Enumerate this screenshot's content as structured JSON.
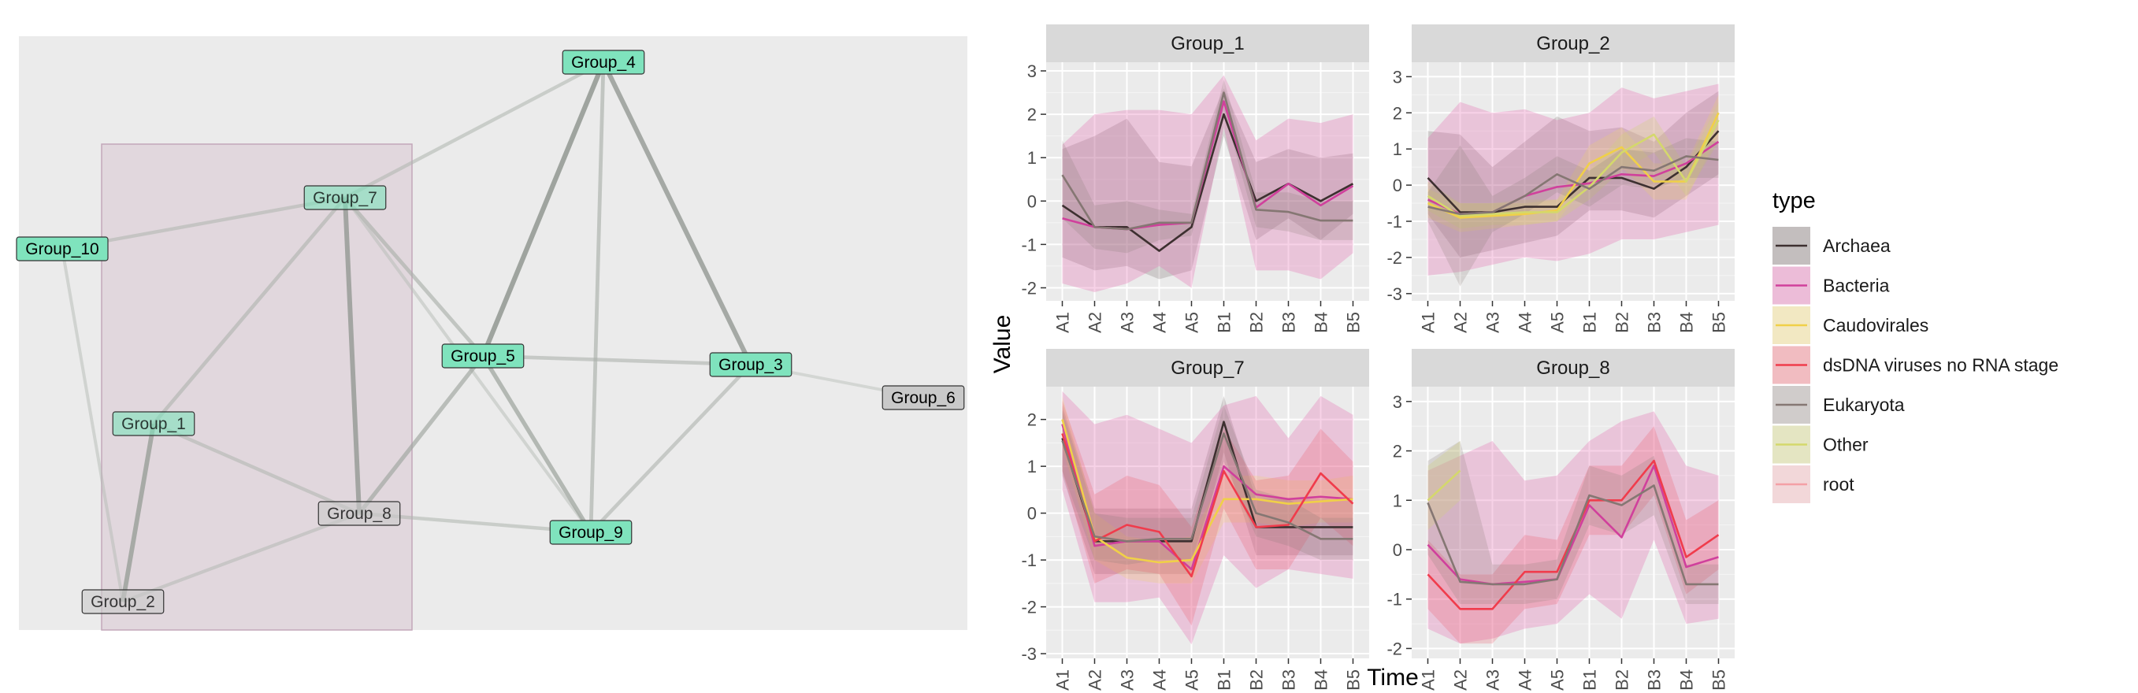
{
  "network": {
    "nodes": [
      {
        "id": "Group_4",
        "label": "Group_4",
        "color": "#7fe3bd",
        "in_box": false
      },
      {
        "id": "Group_7",
        "label": "Group_7",
        "color": "#7fe3bd",
        "in_box": true
      },
      {
        "id": "Group_10",
        "label": "Group_10",
        "color": "#7fe3bd",
        "in_box": false
      },
      {
        "id": "Group_5",
        "label": "Group_5",
        "color": "#7fe3bd",
        "in_box": false
      },
      {
        "id": "Group_3",
        "label": "Group_3",
        "color": "#7fe3bd",
        "in_box": false
      },
      {
        "id": "Group_6",
        "label": "Group_6",
        "color": "#c9c9c9",
        "in_box": false
      },
      {
        "id": "Group_1",
        "label": "Group_1",
        "color": "#7fe3bd",
        "in_box": true
      },
      {
        "id": "Group_8",
        "label": "Group_8",
        "color": "#c9c9c9",
        "in_box": true
      },
      {
        "id": "Group_9",
        "label": "Group_9",
        "color": "#7fe3bd",
        "in_box": false
      },
      {
        "id": "Group_2",
        "label": "Group_2",
        "color": "#c9c9c9",
        "in_box": true
      }
    ],
    "edges": [
      {
        "from": "Group_4",
        "to": "Group_7",
        "strength": 0.35
      },
      {
        "from": "Group_4",
        "to": "Group_5",
        "strength": 0.8
      },
      {
        "from": "Group_4",
        "to": "Group_3",
        "strength": 0.75
      },
      {
        "from": "Group_4",
        "to": "Group_9",
        "strength": 0.45
      },
      {
        "from": "Group_7",
        "to": "Group_10",
        "strength": 0.35
      },
      {
        "from": "Group_7",
        "to": "Group_1",
        "strength": 0.4
      },
      {
        "from": "Group_7",
        "to": "Group_8",
        "strength": 0.75
      },
      {
        "from": "Group_7",
        "to": "Group_5",
        "strength": 0.45
      },
      {
        "from": "Group_7",
        "to": "Group_9",
        "strength": 0.25
      },
      {
        "from": "Group_10",
        "to": "Group_2",
        "strength": 0.25
      },
      {
        "from": "Group_5",
        "to": "Group_3",
        "strength": 0.4
      },
      {
        "from": "Group_5",
        "to": "Group_9",
        "strength": 0.6
      },
      {
        "from": "Group_5",
        "to": "Group_8",
        "strength": 0.55
      },
      {
        "from": "Group_3",
        "to": "Group_6",
        "strength": 0.2
      },
      {
        "from": "Group_3",
        "to": "Group_9",
        "strength": 0.4
      },
      {
        "from": "Group_1",
        "to": "Group_2",
        "strength": 0.7
      },
      {
        "from": "Group_1",
        "to": "Group_8",
        "strength": 0.35
      },
      {
        "from": "Group_8",
        "to": "Group_9",
        "strength": 0.35
      },
      {
        "from": "Group_8",
        "to": "Group_2",
        "strength": 0.3
      }
    ]
  },
  "chart_data": {
    "type": "line",
    "xlabel": "Time",
    "ylabel": "Value",
    "categories": [
      "A1",
      "A2",
      "A3",
      "A4",
      "A5",
      "B1",
      "B2",
      "B3",
      "B4",
      "B5"
    ],
    "legend": {
      "title": "type",
      "position": "right"
    },
    "series_colors": {
      "Archaea": "#3d3030",
      "Bacteria": "#d0409c",
      "Caudovirales": "#f0d048",
      "dsDNA viruses  no RNA stage": "#f03c4c",
      "Eukaryota": "#857773",
      "Other": "#d4d86c",
      "root": "#f4a0a6"
    },
    "legend_items": [
      "Archaea",
      "Bacteria",
      "Caudovirales",
      "dsDNA viruses  no RNA stage",
      "Eukaryota",
      "Other",
      "root"
    ],
    "panels": [
      {
        "title": "Group_1",
        "ylim": [
          -2.3,
          3.2
        ],
        "yticks": [
          -2,
          -1,
          0,
          1,
          2,
          3
        ],
        "series": [
          {
            "name": "Archaea",
            "values": [
              -0.1,
              -0.6,
              -0.6,
              -1.15,
              -0.6,
              2.0,
              0.0,
              0.4,
              0.0,
              0.4
            ],
            "lower": [
              -1.3,
              -1.6,
              -1.5,
              -1.8,
              -1.6,
              1.5,
              -0.9,
              -0.4,
              -0.9,
              -0.3
            ],
            "upper": [
              1.2,
              1.5,
              1.9,
              0.9,
              0.8,
              2.6,
              0.9,
              1.2,
              1.0,
              1.1
            ]
          },
          {
            "name": "Bacteria",
            "values": [
              -0.4,
              -0.6,
              -0.65,
              -0.55,
              -0.5,
              2.3,
              -0.15,
              0.4,
              -0.1,
              0.35
            ],
            "lower": [
              -1.9,
              -2.1,
              -1.9,
              -1.5,
              -2.0,
              1.7,
              -1.6,
              -1.6,
              -1.8,
              -1.2
            ],
            "upper": [
              1.3,
              2.0,
              2.1,
              2.1,
              2.0,
              2.9,
              1.4,
              1.9,
              1.8,
              2.0
            ]
          },
          {
            "name": "Eukaryota",
            "values": [
              0.6,
              -0.6,
              -0.65,
              -0.5,
              -0.5,
              2.5,
              -0.2,
              -0.25,
              -0.45,
              -0.45
            ],
            "lower": [
              -0.4,
              -1.1,
              -1.2,
              -0.9,
              -0.8,
              2.1,
              -0.6,
              -0.7,
              -0.9,
              -0.9
            ],
            "upper": [
              1.4,
              -0.1,
              0.0,
              -0.2,
              -0.3,
              2.8,
              0.2,
              0.2,
              0.0,
              0.0
            ]
          }
        ]
      },
      {
        "title": "Group_2",
        "ylim": [
          -3.2,
          3.4
        ],
        "yticks": [
          -3,
          -2,
          -1,
          0,
          1,
          2,
          3
        ],
        "series": [
          {
            "name": "Archaea",
            "values": [
              0.2,
              -0.75,
              -0.75,
              -0.6,
              -0.6,
              0.2,
              0.2,
              -0.1,
              0.5,
              1.5
            ],
            "lower": [
              -0.8,
              -2.0,
              -1.8,
              -1.6,
              -1.4,
              -0.7,
              -0.7,
              -0.9,
              -0.3,
              0.3
            ],
            "upper": [
              1.5,
              1.4,
              0.5,
              1.2,
              1.9,
              1.5,
              1.6,
              1.2,
              2.0,
              2.6
            ]
          },
          {
            "name": "Bacteria",
            "values": [
              -0.4,
              -0.8,
              -0.75,
              -0.3,
              -0.05,
              0.05,
              0.3,
              0.25,
              0.6,
              1.2
            ],
            "lower": [
              -2.5,
              -2.4,
              -2.2,
              -2.0,
              -2.1,
              -1.9,
              -1.5,
              -1.5,
              -1.3,
              -1.1
            ],
            "upper": [
              1.3,
              2.3,
              2.0,
              2.1,
              1.8,
              2.0,
              2.7,
              2.4,
              2.6,
              2.8
            ]
          },
          {
            "name": "Caudovirales",
            "values": [
              -0.5,
              -0.9,
              -0.85,
              -0.8,
              -0.7,
              0.6,
              1.05,
              0.1,
              0.1,
              2.0
            ],
            "lower": [
              -0.9,
              -1.3,
              -1.2,
              -1.1,
              -1.0,
              0.1,
              0.5,
              -0.4,
              -0.4,
              1.4
            ],
            "upper": [
              -0.1,
              -0.5,
              -0.5,
              -0.5,
              -0.4,
              1.1,
              1.6,
              0.6,
              0.6,
              2.5
            ]
          },
          {
            "name": "Other",
            "values": [
              -0.3,
              -0.85,
              -0.8,
              -0.75,
              -0.75,
              -0.05,
              0.9,
              1.4,
              0.1,
              1.8
            ],
            "lower": [
              -0.7,
              -1.2,
              -1.1,
              -1.1,
              -1.0,
              -0.4,
              0.4,
              0.9,
              -0.3,
              1.2
            ],
            "upper": [
              0.1,
              -0.5,
              -0.5,
              -0.4,
              -0.4,
              0.4,
              1.4,
              1.9,
              0.5,
              2.3
            ]
          },
          {
            "name": "Eukaryota",
            "values": [
              -0.6,
              -0.8,
              -0.75,
              -0.3,
              0.3,
              -0.1,
              0.5,
              0.4,
              0.8,
              0.7
            ],
            "lower": [
              -1.0,
              -2.8,
              -1.3,
              -0.8,
              -0.2,
              -0.6,
              0.0,
              -0.1,
              0.2,
              0.2
            ],
            "upper": [
              -0.2,
              1.1,
              -0.3,
              0.2,
              0.8,
              0.4,
              1.0,
              0.9,
              1.3,
              1.2
            ]
          }
        ]
      },
      {
        "title": "Group_7",
        "ylim": [
          -3.1,
          2.7
        ],
        "yticks": [
          -3,
          -2,
          -1,
          0,
          1,
          2
        ],
        "series": [
          {
            "name": "Archaea",
            "values": [
              1.6,
              -0.6,
              -0.6,
              -0.6,
              -0.6,
              1.95,
              -0.3,
              -0.3,
              -0.3,
              -0.3
            ],
            "lower": [
              0.8,
              -1.3,
              -1.3,
              -1.3,
              -1.3,
              1.3,
              -0.9,
              -0.9,
              -0.9,
              -0.9
            ],
            "upper": [
              2.3,
              0.1,
              0.1,
              0.1,
              0.1,
              2.5,
              0.3,
              0.3,
              0.3,
              0.3
            ]
          },
          {
            "name": "Bacteria",
            "values": [
              1.9,
              -0.7,
              -0.6,
              -0.6,
              -1.2,
              1.0,
              0.4,
              0.3,
              0.35,
              0.3
            ],
            "lower": [
              0.5,
              -1.9,
              -1.9,
              -1.8,
              -2.8,
              -0.9,
              -1.6,
              -1.2,
              -1.3,
              -1.4
            ],
            "upper": [
              2.6,
              1.9,
              2.1,
              1.8,
              1.5,
              2.3,
              2.5,
              1.6,
              2.5,
              2.1
            ]
          },
          {
            "name": "Caudovirales",
            "values": [
              2.0,
              -0.5,
              -0.95,
              -1.05,
              -1.0,
              0.3,
              0.3,
              0.2,
              0.25,
              0.3
            ],
            "lower": [
              1.4,
              -1.0,
              -1.4,
              -1.5,
              -1.5,
              -0.2,
              -0.2,
              -0.3,
              -0.2,
              -0.2
            ],
            "upper": [
              2.5,
              0.0,
              -0.5,
              -0.6,
              -0.5,
              0.8,
              0.8,
              0.7,
              0.7,
              0.8
            ]
          },
          {
            "name": "dsDNA viruses  no RNA stage",
            "values": [
              1.7,
              -0.6,
              -0.25,
              -0.4,
              -1.35,
              0.9,
              -0.3,
              -0.25,
              0.85,
              0.2
            ],
            "lower": [
              0.9,
              -1.5,
              -1.2,
              -1.3,
              -2.4,
              0.1,
              -1.2,
              -1.2,
              -0.1,
              -0.7
            ],
            "upper": [
              2.4,
              0.4,
              0.8,
              0.6,
              -0.3,
              1.8,
              0.7,
              0.8,
              1.8,
              1.1
            ]
          },
          {
            "name": "Eukaryota",
            "values": [
              1.55,
              -0.5,
              -0.6,
              -0.55,
              -0.55,
              1.7,
              0.0,
              -0.2,
              -0.55,
              -0.55
            ],
            "lower": [
              0.9,
              -1.0,
              -1.1,
              -1.0,
              -1.0,
              1.1,
              -0.5,
              -0.7,
              -1.0,
              -1.0
            ],
            "upper": [
              2.2,
              0.0,
              -0.1,
              -0.1,
              -0.1,
              2.3,
              0.5,
              0.3,
              -0.1,
              -0.1
            ]
          }
        ]
      },
      {
        "title": "Group_8",
        "ylim": [
          -2.2,
          3.3
        ],
        "yticks": [
          -2,
          -1,
          0,
          1,
          2,
          3
        ],
        "series": [
          {
            "name": "Bacteria",
            "values": [
              0.1,
              -0.6,
              -0.7,
              -0.65,
              -0.6,
              0.9,
              0.25,
              1.7,
              -0.35,
              -0.15
            ],
            "lower": [
              -1.6,
              -1.9,
              -1.8,
              -1.6,
              -1.5,
              -0.9,
              -1.4,
              0.2,
              -1.5,
              -1.4
            ],
            "upper": [
              1.6,
              1.9,
              2.2,
              1.4,
              1.5,
              2.2,
              2.6,
              2.8,
              1.7,
              1.5
            ]
          },
          {
            "name": "dsDNA viruses  no RNA stage",
            "values": [
              -0.5,
              -1.2,
              -1.2,
              -0.45,
              -0.45,
              1.0,
              1.0,
              1.8,
              -0.15,
              0.3
            ],
            "lower": [
              -1.2,
              -1.9,
              -1.9,
              -1.2,
              -1.1,
              0.3,
              0.3,
              1.1,
              -0.9,
              -0.4
            ],
            "upper": [
              0.2,
              -0.5,
              -0.5,
              0.3,
              0.2,
              1.7,
              1.7,
              2.5,
              0.6,
              1.0
            ]
          },
          {
            "name": "Eukaryota",
            "values": [
              0.95,
              -0.65,
              -0.7,
              -0.7,
              -0.6,
              1.1,
              0.9,
              1.3,
              -0.7,
              -0.7
            ],
            "lower": [
              -0.1,
              -1.1,
              -1.1,
              -1.1,
              -1.0,
              0.5,
              0.3,
              0.7,
              -1.1,
              -1.1
            ],
            "upper": [
              1.8,
              2.2,
              -0.3,
              -0.3,
              -0.2,
              1.7,
              1.5,
              1.9,
              -0.3,
              -0.3
            ]
          },
          {
            "name": "Other",
            "values": [
              1.0,
              1.6,
              null,
              null,
              null,
              null,
              null,
              null,
              null,
              null
            ],
            "lower": [
              0.4,
              1.0,
              null,
              null,
              null,
              null,
              null,
              null,
              null,
              null
            ],
            "upper": [
              1.7,
              2.2,
              null,
              null,
              null,
              null,
              null,
              null,
              null,
              null
            ]
          }
        ]
      }
    ]
  }
}
